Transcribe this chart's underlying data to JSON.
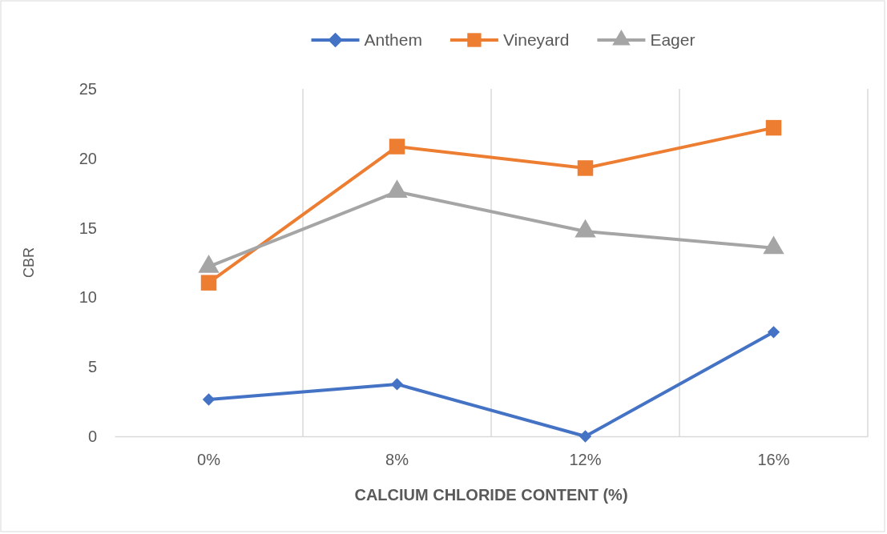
{
  "chart_data": {
    "type": "line",
    "xlabel": "CALCIUM CHLORIDE CONTENT (%)",
    "ylabel": "CBR",
    "categories": [
      "0%",
      "8%",
      "12%",
      "16%"
    ],
    "series": [
      {
        "name": "Anthem",
        "color": "#4472c4",
        "marker": "diamond",
        "values": [
          2.65,
          3.75,
          0,
          7.5
        ]
      },
      {
        "name": "Vineyard",
        "color": "#ed7d31",
        "marker": "square",
        "values": [
          11.05,
          20.85,
          19.3,
          22.2
        ]
      },
      {
        "name": "Eager",
        "color": "#a5a5a5",
        "marker": "triangle",
        "values": [
          12.2,
          17.6,
          14.75,
          13.55
        ]
      }
    ],
    "ylim": [
      0,
      25
    ],
    "yticks": [
      0,
      5,
      10,
      15,
      20,
      25
    ],
    "grid": "x",
    "legend": "top"
  }
}
